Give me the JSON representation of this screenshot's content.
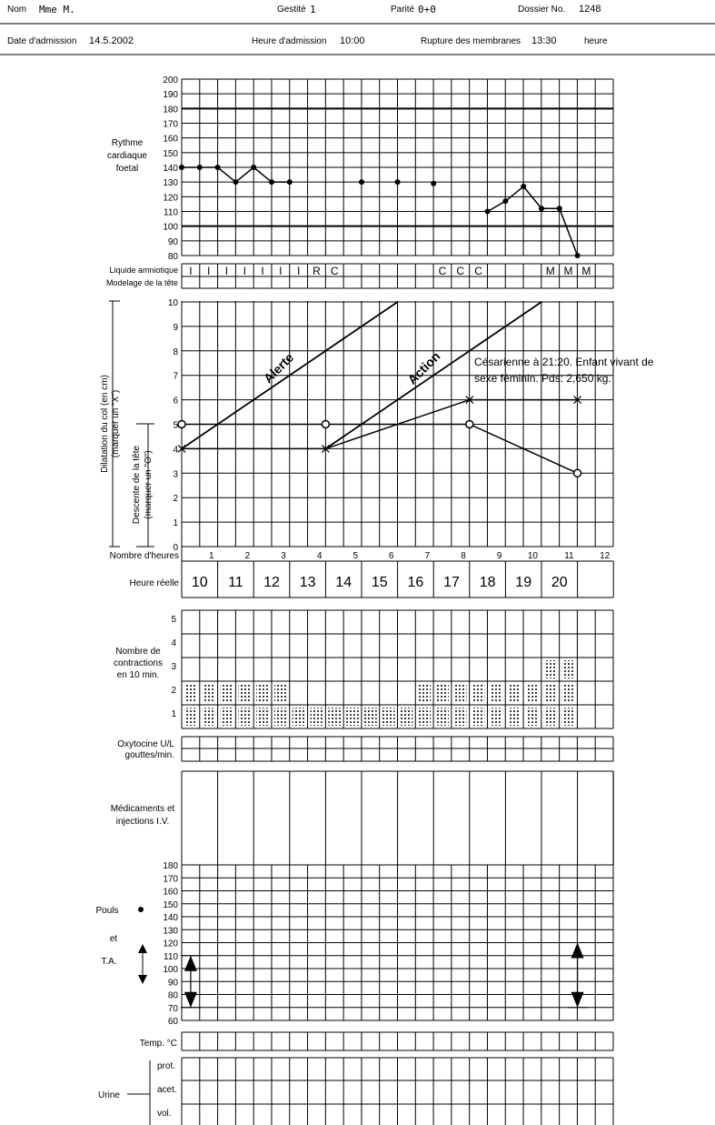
{
  "header": {
    "name_label": "Nom",
    "name_value": "Mme M.",
    "gestite_label": "Gestité",
    "gestite_value": "1",
    "parite_label": "Parité",
    "parite_value": "0+0",
    "dossier_label": "Dossier No.",
    "dossier_value": "1248",
    "admission_date_label": "Date d'admission",
    "admission_date_value": "14.5.2002",
    "admission_time_label": "Heure d'admission",
    "admission_time_value": "10:00",
    "rupture_label": "Rupture des membranes",
    "rupture_value": "13:30",
    "rupture_unit": "heure"
  },
  "labels": {
    "fhr_title": [
      "Rythme",
      "cardiaque",
      "foetal"
    ],
    "liquide": "Liquide amniotique",
    "modelage": "Modelage de la tête",
    "dilatation": [
      "Dilatation du col (en cm)",
      "(marquer un \"X\")"
    ],
    "descente": [
      "Descente de la tête",
      "(marquer un \"O\")"
    ],
    "nombre_heures": "Nombre d'heures",
    "heure_reelle": "Heure réelle",
    "alerte": "Alerte",
    "action": "Action",
    "note": [
      "Césarienne à 21:20. Enfant vivant de",
      "sexe féminin. Pds: 2,650 kg."
    ],
    "contractions": [
      "Nombre de",
      "contractions",
      "en 10 min."
    ],
    "oxytocine": [
      "Oxytocine U/L",
      "gouttes/min."
    ],
    "medicaments": [
      "Médicaments et",
      "injections I.V."
    ],
    "pouls": "Pouls",
    "et": "et",
    "ta": "T.A.",
    "temp": "Temp. °C",
    "urine": "Urine",
    "urine_rows": [
      "prot.",
      "acet.",
      "vol."
    ]
  },
  "colors": {
    "ink": "#000000",
    "grid": "#000000",
    "background": "#ffffff"
  },
  "chart_data": [
    {
      "type": "line",
      "name": "fhr",
      "ylim": [
        80,
        200
      ],
      "yticks": [
        80,
        90,
        100,
        110,
        120,
        130,
        140,
        150,
        160,
        170,
        180,
        190,
        200
      ],
      "reference_lines": [
        100,
        180
      ],
      "points": [
        {
          "x": 0,
          "y": 140
        },
        {
          "x": 0.5,
          "y": 140
        },
        {
          "x": 1,
          "y": 140
        },
        {
          "x": 1.5,
          "y": 130
        },
        {
          "x": 2,
          "y": 140
        },
        {
          "x": 2.5,
          "y": 130
        },
        {
          "x": 3,
          "y": 130
        },
        {
          "x": 5,
          "y": 130
        },
        {
          "x": 6,
          "y": 130
        },
        {
          "x": 7,
          "y": 129
        },
        {
          "x": 8.5,
          "y": 110
        },
        {
          "x": 9,
          "y": 117
        },
        {
          "x": 9.5,
          "y": 127
        },
        {
          "x": 10,
          "y": 112
        },
        {
          "x": 10.5,
          "y": 112
        },
        {
          "x": 11,
          "y": 80
        }
      ],
      "connected_segments": [
        [
          0,
          6
        ],
        [
          10,
          15
        ]
      ]
    },
    {
      "type": "table",
      "name": "liquide_amniotique",
      "cells": [
        "I",
        "I",
        "I",
        "I",
        "I",
        "I",
        "I",
        "R",
        "C",
        "",
        "",
        "",
        "",
        "",
        "C",
        "C",
        "C",
        "",
        "",
        "",
        "M",
        "M",
        "M",
        ""
      ]
    },
    {
      "type": "line",
      "name": "partogram",
      "ylim": [
        0,
        10
      ],
      "xlim": [
        0,
        12
      ],
      "yticks": [
        0,
        1,
        2,
        3,
        4,
        5,
        6,
        7,
        8,
        9,
        10
      ],
      "hours": [
        1,
        2,
        3,
        4,
        5,
        6,
        7,
        8,
        9,
        10,
        11,
        12
      ],
      "real_hours": [
        "10",
        "11",
        "12",
        "13",
        "14",
        "15",
        "16",
        "17",
        "18",
        "19",
        "20"
      ],
      "alert_line": [
        {
          "x": 0,
          "y": 4
        },
        {
          "x": 6,
          "y": 10
        }
      ],
      "action_line": [
        {
          "x": 4,
          "y": 4
        },
        {
          "x": 10,
          "y": 10
        }
      ],
      "dilatation_x": [
        {
          "x": 0,
          "y": 4
        },
        {
          "x": 4,
          "y": 4
        },
        {
          "x": 8,
          "y": 6
        },
        {
          "x": 11,
          "y": 6
        }
      ],
      "descente_o": [
        {
          "x": 0,
          "y": 5
        },
        {
          "x": 4,
          "y": 5
        },
        {
          "x": 8,
          "y": 5
        },
        {
          "x": 11,
          "y": 3
        }
      ]
    },
    {
      "type": "bar",
      "name": "contractions",
      "ylim": [
        0,
        5
      ],
      "yticks": [
        1,
        2,
        3,
        4,
        5
      ],
      "values": [
        2,
        2,
        2,
        2,
        2,
        2,
        1,
        1,
        1,
        1,
        1,
        1,
        1,
        2,
        2,
        2,
        2,
        2,
        2,
        2,
        3,
        3
      ]
    },
    {
      "type": "line",
      "name": "pouls_ta",
      "ylim": [
        60,
        180
      ],
      "yticks": [
        60,
        70,
        80,
        90,
        100,
        110,
        120,
        130,
        140,
        150,
        160,
        170,
        180
      ],
      "ta": [
        {
          "x": 0.25,
          "systolic": 110,
          "diastolic": 70
        },
        {
          "x": 11,
          "systolic": 120,
          "diastolic": 70
        }
      ]
    }
  ]
}
